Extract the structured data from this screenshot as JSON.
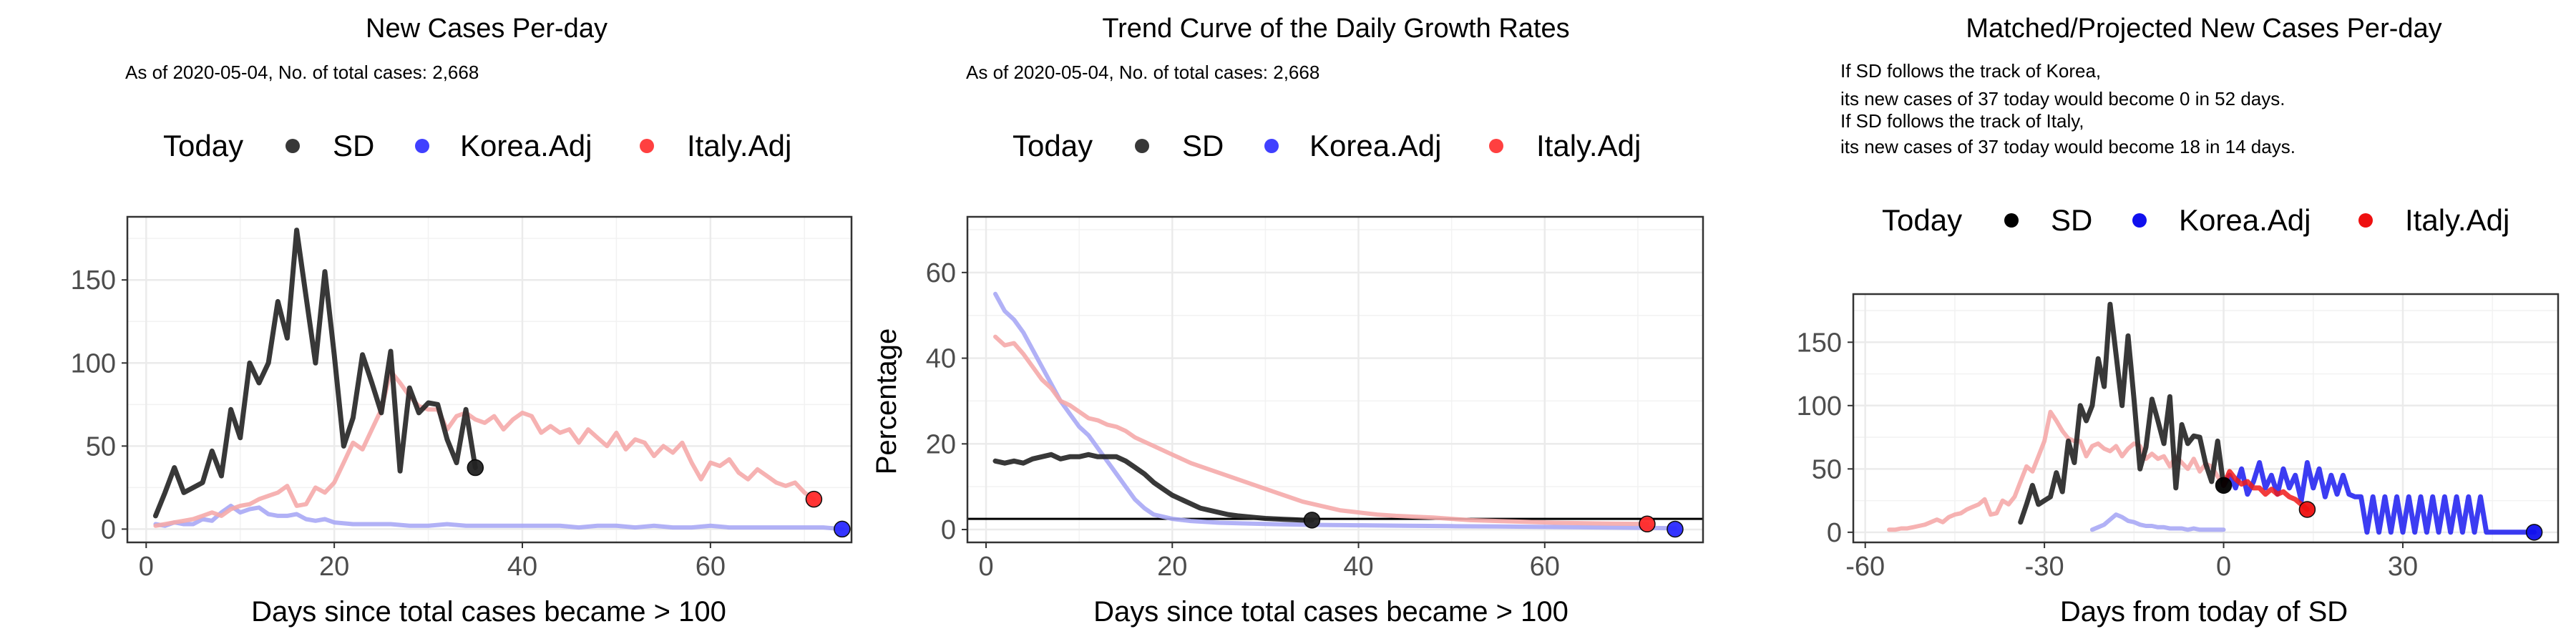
{
  "page": {
    "legend_labels": {
      "today": "Today",
      "sd": "SD",
      "korea": "Korea.Adj",
      "italy": "Italy.Adj"
    },
    "colors": {
      "sd": "#222222",
      "korea": "#2b2bff",
      "italy": "#ff2b2b",
      "korea_faint": "#a9a9f5",
      "italy_faint": "#f5aaaa",
      "grid": "#ebebeb",
      "border": "#333333"
    }
  },
  "chart_data": [
    {
      "type": "line",
      "title": "New Cases Per-day",
      "subtitle": "As of 2020-05-04, No. of total cases: 2,668",
      "xlabel": "Days since total cases became > 100",
      "ylabel": "",
      "xlim": [
        -2,
        75
      ],
      "ylim": [
        -8,
        188
      ],
      "xticks": [
        0,
        20,
        40,
        60
      ],
      "yticks": [
        0,
        50,
        100,
        150
      ],
      "grid": true,
      "legend": "top",
      "series": [
        {
          "name": "SD",
          "style": "solid-dark",
          "x": [
            1,
            2,
            3,
            4,
            5,
            6,
            7,
            8,
            9,
            10,
            11,
            12,
            13,
            14,
            15,
            16,
            17,
            18,
            19,
            20,
            21,
            22,
            23,
            24,
            25,
            26,
            27,
            28,
            29,
            30,
            31,
            32,
            33,
            34,
            35
          ],
          "y": [
            8,
            22,
            37,
            22,
            25,
            28,
            47,
            32,
            72,
            55,
            100,
            88,
            100,
            137,
            115,
            180,
            140,
            100,
            155,
            105,
            50,
            67,
            105,
            88,
            70,
            107,
            35,
            85,
            70,
            76,
            75,
            54,
            40,
            72,
            37
          ]
        },
        {
          "name": "Korea.Adj",
          "style": "faint",
          "x": [
            1,
            2,
            3,
            4,
            5,
            6,
            7,
            8,
            9,
            10,
            11,
            12,
            13,
            14,
            15,
            16,
            17,
            18,
            19,
            20,
            22,
            24,
            26,
            28,
            30,
            32,
            34,
            36,
            38,
            40,
            42,
            44,
            46,
            48,
            50,
            52,
            54,
            56,
            58,
            60,
            62,
            64,
            66,
            68,
            70,
            72,
            74
          ],
          "y": [
            3,
            2,
            4,
            3,
            3,
            6,
            5,
            10,
            14,
            10,
            12,
            13,
            9,
            8,
            8,
            9,
            6,
            5,
            6,
            4,
            3,
            3,
            3,
            2,
            2,
            3,
            2,
            2,
            2,
            2,
            2,
            2,
            1,
            2,
            2,
            1,
            2,
            1,
            1,
            2,
            1,
            1,
            1,
            1,
            1,
            1,
            0
          ]
        },
        {
          "name": "Italy.Adj",
          "style": "faint",
          "x": [
            1,
            2,
            3,
            4,
            5,
            6,
            7,
            8,
            9,
            10,
            11,
            12,
            13,
            14,
            15,
            16,
            17,
            18,
            19,
            20,
            21,
            22,
            23,
            24,
            25,
            26,
            27,
            28,
            29,
            30,
            31,
            32,
            33,
            34,
            35,
            36,
            37,
            38,
            39,
            40,
            41,
            42,
            43,
            44,
            45,
            46,
            47,
            48,
            49,
            50,
            51,
            52,
            53,
            54,
            55,
            56,
            57,
            58,
            59,
            60,
            61,
            62,
            63,
            64,
            65,
            66,
            67,
            68,
            69,
            70,
            71
          ],
          "y": [
            2,
            3,
            4,
            5,
            6,
            8,
            10,
            8,
            12,
            14,
            15,
            18,
            20,
            22,
            26,
            14,
            15,
            25,
            22,
            28,
            40,
            52,
            48,
            60,
            72,
            95,
            88,
            80,
            74,
            72,
            72,
            60,
            68,
            70,
            66,
            64,
            68,
            60,
            66,
            70,
            68,
            58,
            62,
            58,
            60,
            52,
            60,
            55,
            50,
            58,
            48,
            54,
            52,
            44,
            50,
            46,
            52,
            40,
            30,
            40,
            38,
            42,
            34,
            30,
            36,
            32,
            28,
            26,
            28,
            22,
            18
          ]
        },
        {
          "name": "Today",
          "type": "points",
          "points": [
            {
              "series": "SD",
              "x": 35,
              "y": 37
            },
            {
              "series": "Korea.Adj",
              "x": 74,
              "y": 0
            },
            {
              "series": "Italy.Adj",
              "x": 71,
              "y": 18
            }
          ]
        }
      ]
    },
    {
      "type": "line",
      "title": "Trend Curve of the Daily Growth Rates",
      "subtitle": "As of 2020-05-04, No. of total cases: 2,668",
      "xlabel": "Days since total cases became > 100",
      "ylabel": "Percentage",
      "xlim": [
        -2,
        77
      ],
      "ylim": [
        -3,
        73
      ],
      "xticks": [
        0,
        20,
        40,
        60
      ],
      "yticks": [
        0,
        20,
        40,
        60
      ],
      "grid": true,
      "legend": "top",
      "hline": 2.5,
      "series": [
        {
          "name": "SD",
          "style": "solid-dark",
          "x": [
            1,
            2,
            3,
            4,
            5,
            6,
            7,
            8,
            9,
            10,
            11,
            12,
            13,
            14,
            15,
            16,
            17,
            18,
            19,
            20,
            21,
            22,
            23,
            24,
            25,
            26,
            27,
            28,
            29,
            30,
            31,
            32,
            33,
            34,
            35
          ],
          "y": [
            16,
            15.5,
            16,
            15.5,
            16.5,
            17,
            17.5,
            16.5,
            17,
            17,
            17.5,
            17,
            17,
            17,
            16,
            14.5,
            13,
            11,
            9.5,
            8,
            7,
            6,
            5,
            4.5,
            4,
            3.5,
            3.2,
            3,
            2.8,
            2.6,
            2.5,
            2.4,
            2.3,
            2.2,
            2.2
          ]
        },
        {
          "name": "Korea.Adj",
          "style": "faint",
          "x": [
            1,
            2,
            3,
            4,
            5,
            6,
            7,
            8,
            9,
            10,
            11,
            12,
            13,
            14,
            15,
            16,
            17,
            18,
            20,
            22,
            25,
            30,
            35,
            40,
            45,
            50,
            55,
            60,
            65,
            70,
            74
          ],
          "y": [
            55,
            51,
            49,
            46,
            42,
            38,
            34,
            30,
            27,
            24,
            22,
            19,
            16,
            13,
            10,
            7,
            5,
            3.5,
            2.5,
            2,
            1.6,
            1.3,
            1.1,
            1,
            0.9,
            0.8,
            0.7,
            0.6,
            0.5,
            0.4,
            0.3
          ]
        },
        {
          "name": "Italy.Adj",
          "style": "faint",
          "x": [
            1,
            2,
            3,
            4,
            5,
            6,
            7,
            8,
            9,
            10,
            11,
            12,
            13,
            14,
            15,
            16,
            17,
            18,
            19,
            20,
            22,
            24,
            26,
            28,
            30,
            32,
            34,
            36,
            38,
            40,
            42,
            44,
            46,
            48,
            50,
            52,
            55,
            58,
            61,
            64,
            67,
            71
          ],
          "y": [
            45,
            43,
            43.5,
            41,
            38,
            35,
            33,
            30,
            29,
            27.5,
            26,
            25.5,
            24.5,
            24,
            23,
            21.5,
            20.5,
            19.5,
            18.5,
            17.5,
            15.5,
            14,
            12.5,
            11,
            9.5,
            8,
            6.5,
            5.5,
            4.5,
            4,
            3.5,
            3.2,
            3,
            2.8,
            2.5,
            2.2,
            2,
            1.8,
            1.6,
            1.5,
            1.4,
            1.3
          ]
        },
        {
          "name": "Today",
          "type": "points",
          "points": [
            {
              "series": "SD",
              "x": 35,
              "y": 2.2
            },
            {
              "series": "Korea.Adj",
              "x": 74,
              "y": 0.1
            },
            {
              "series": "Italy.Adj",
              "x": 71,
              "y": 1.3
            }
          ]
        }
      ]
    },
    {
      "type": "line",
      "title": "Matched/Projected New Cases Per-day",
      "annotations": [
        "If SD follows the track of Korea,",
        "its new cases of 37 today would become 0 in 52 days.",
        "If SD follows the track of Italy,",
        "its new cases of 37 today would become 18 in 14 days."
      ],
      "xlabel": "Days from today of SD",
      "ylabel": "",
      "xlim": [
        -62,
        56
      ],
      "ylim": [
        -8,
        188
      ],
      "xticks": [
        -60,
        -30,
        0,
        30
      ],
      "yticks": [
        0,
        50,
        100,
        150
      ],
      "grid": true,
      "legend": "top",
      "series": [
        {
          "name": "SD",
          "style": "solid-dark",
          "x": [
            -34,
            -33,
            -32,
            -31,
            -30,
            -29,
            -28,
            -27,
            -26,
            -25,
            -24,
            -23,
            -22,
            -21,
            -20,
            -19,
            -18,
            -17,
            -16,
            -15,
            -14,
            -13,
            -12,
            -11,
            -10,
            -9,
            -8,
            -7,
            -6,
            -5,
            -4,
            -3,
            -2,
            -1,
            0
          ],
          "y": [
            8,
            22,
            37,
            22,
            25,
            28,
            47,
            32,
            72,
            55,
            100,
            88,
            100,
            137,
            115,
            180,
            140,
            100,
            155,
            105,
            50,
            67,
            105,
            88,
            70,
            107,
            35,
            85,
            70,
            76,
            75,
            54,
            40,
            72,
            37
          ]
        },
        {
          "name": "Korea.Adj (matched)",
          "style": "faint",
          "x": [
            -22,
            -21,
            -20,
            -19,
            -18,
            -17,
            -16,
            -15,
            -14,
            -13,
            -12,
            -11,
            -10,
            -9,
            -8,
            -7,
            -6,
            -5,
            -4,
            -3,
            -2,
            -1,
            0
          ],
          "y": [
            2,
            4,
            6,
            10,
            14,
            12,
            9,
            8,
            6,
            5,
            5,
            4,
            4,
            3,
            3,
            3,
            2,
            3,
            2,
            2,
            2,
            2,
            2
          ]
        },
        {
          "name": "Italy.Adj (matched)",
          "style": "faint",
          "x": [
            -56,
            -55,
            -54,
            -53,
            -52,
            -51,
            -50,
            -49,
            -48,
            -47,
            -46,
            -45,
            -44,
            -43,
            -42,
            -41,
            -40,
            -39,
            -38,
            -37,
            -36,
            -35,
            -34,
            -33,
            -32,
            -31,
            -30,
            -29,
            -28,
            -27,
            -26,
            -25,
            -24,
            -23,
            -22,
            -21,
            -20,
            -19,
            -18,
            -17,
            -16,
            -15,
            -14,
            -13,
            -12,
            -11,
            -10,
            -9,
            -8,
            -7,
            -6,
            -5,
            -4,
            -3,
            -2,
            -1,
            0
          ],
          "y": [
            2,
            2,
            3,
            3,
            4,
            5,
            6,
            8,
            10,
            8,
            12,
            14,
            15,
            18,
            20,
            22,
            26,
            14,
            15,
            25,
            22,
            28,
            40,
            52,
            48,
            60,
            72,
            95,
            88,
            80,
            74,
            72,
            72,
            60,
            68,
            70,
            66,
            64,
            68,
            60,
            66,
            70,
            68,
            58,
            62,
            58,
            60,
            52,
            60,
            55,
            50,
            58,
            48,
            54,
            52,
            44,
            37
          ]
        },
        {
          "name": "Korea.Adj (projected)",
          "style": "solid-blue",
          "x": [
            0,
            1,
            2,
            3,
            4,
            5,
            6,
            7,
            8,
            9,
            10,
            11,
            12,
            13,
            14,
            15,
            16,
            17,
            18,
            19,
            20,
            21,
            22,
            23,
            24,
            25,
            26,
            27,
            28,
            29,
            30,
            31,
            32,
            33,
            34,
            35,
            36,
            37,
            38,
            39,
            40,
            41,
            42,
            43,
            44,
            45,
            46,
            47,
            48,
            49,
            50,
            51,
            52
          ],
          "y": [
            37,
            45,
            35,
            50,
            30,
            40,
            55,
            35,
            45,
            30,
            50,
            35,
            45,
            25,
            55,
            35,
            50,
            28,
            45,
            30,
            45,
            30,
            28,
            28,
            0,
            28,
            0,
            28,
            0,
            28,
            0,
            28,
            0,
            28,
            0,
            28,
            0,
            28,
            0,
            28,
            0,
            28,
            0,
            28,
            0,
            0,
            0,
            0,
            0,
            0,
            0,
            0,
            0
          ]
        },
        {
          "name": "Italy.Adj (projected)",
          "style": "solid-red",
          "x": [
            0,
            1,
            2,
            3,
            4,
            5,
            6,
            7,
            8,
            9,
            10,
            11,
            12,
            13,
            14
          ],
          "y": [
            37,
            48,
            42,
            38,
            40,
            35,
            35,
            30,
            34,
            30,
            32,
            28,
            26,
            22,
            18
          ]
        },
        {
          "name": "Today",
          "type": "points",
          "points": [
            {
              "series": "SD",
              "x": 0,
              "y": 37
            },
            {
              "series": "Korea.Adj",
              "x": 52,
              "y": 0
            },
            {
              "series": "Italy.Adj",
              "x": 14,
              "y": 18
            }
          ]
        }
      ]
    }
  ]
}
